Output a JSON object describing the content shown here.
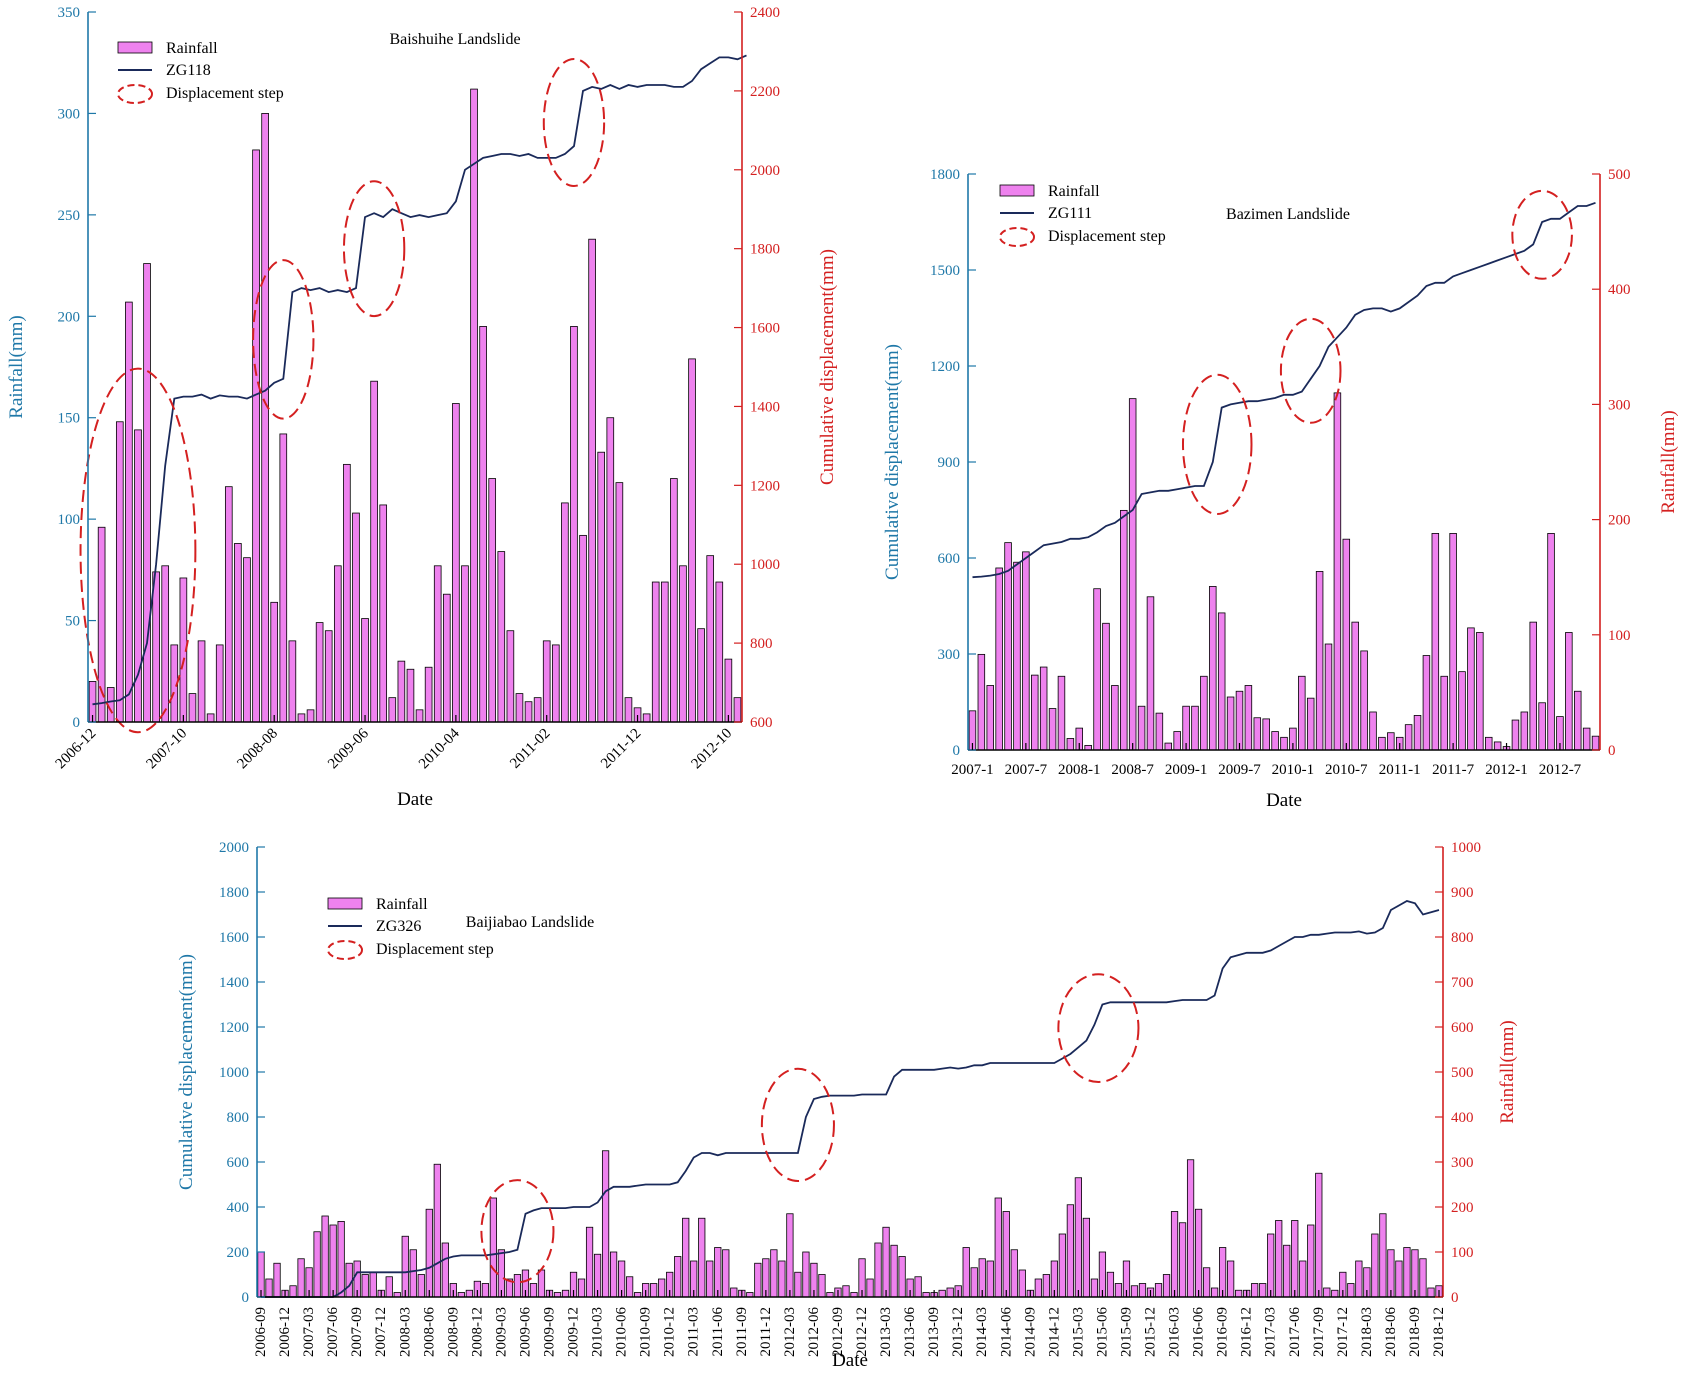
{
  "colors": {
    "bar": "#ee82ee",
    "line": "#1a2a5a",
    "step": "#d42020",
    "blue_axis": "#1f78a8",
    "red_axis": "#d42020"
  },
  "chart_data": [
    {
      "type": "bar+line",
      "title": "Baishuihe Landslide",
      "xlabel": "Date",
      "rain_axis_side": "left",
      "rain_label": "Rainfall(mm)",
      "disp_label": "Cumulative displacement(mm)",
      "rain_lim": [
        0,
        350
      ],
      "rain_ticks": [
        0,
        50,
        100,
        150,
        200,
        250,
        300,
        350
      ],
      "disp_lim": [
        600,
        2400
      ],
      "disp_ticks": [
        600,
        800,
        1000,
        1200,
        1400,
        1600,
        1800,
        2000,
        2200,
        2400
      ],
      "x_tick_labels": [
        "2006-12",
        "2007-10",
        "2008-08",
        "2009-06",
        "2010-04",
        "2011-02",
        "2011-12",
        "2012-10"
      ],
      "x_tick_index": [
        0,
        10,
        20,
        30,
        40,
        50,
        60,
        70
      ],
      "legend": [
        "Rainfall",
        "ZG118",
        "Displacement step"
      ],
      "rainfall": [
        20,
        96,
        17,
        148,
        207,
        144,
        226,
        74,
        77,
        38,
        71,
        14,
        40,
        4,
        38,
        116,
        88,
        81,
        282,
        300,
        59,
        142,
        40,
        4,
        6,
        49,
        45,
        77,
        127,
        103,
        51,
        168,
        107,
        12,
        30,
        26,
        6,
        27,
        77,
        63,
        157,
        77,
        312,
        195,
        120,
        84,
        45,
        14,
        10,
        12,
        40,
        38,
        108,
        195,
        92,
        238,
        133,
        150,
        118,
        12,
        7,
        4,
        69,
        69,
        120,
        77,
        179,
        46,
        82,
        69,
        31,
        12
      ],
      "displacement": [
        645,
        648,
        652,
        655,
        670,
        720,
        800,
        1000,
        1250,
        1420,
        1425,
        1425,
        1430,
        1420,
        1428,
        1425,
        1425,
        1420,
        1430,
        1440,
        1460,
        1470,
        1690,
        1700,
        1695,
        1700,
        1690,
        1695,
        1690,
        1700,
        1880,
        1890,
        1880,
        1900,
        1890,
        1880,
        1885,
        1880,
        1885,
        1890,
        1920,
        2000,
        2015,
        2030,
        2035,
        2040,
        2040,
        2035,
        2040,
        2030,
        2030,
        2030,
        2040,
        2060,
        2200,
        2210,
        2205,
        2215,
        2205,
        2215,
        2210,
        2215,
        2215,
        2215,
        2210,
        2210,
        2225,
        2255,
        2270,
        2285,
        2285,
        2280,
        2290
      ],
      "step_index": [
        [
          0,
          10
        ],
        [
          19,
          23
        ],
        [
          29,
          33
        ],
        [
          51,
          55
        ]
      ]
    },
    {
      "type": "bar+line",
      "title": "Bazimen Landslide",
      "xlabel": "Date",
      "rain_axis_side": "right",
      "rain_label": "Rainfall(mm)",
      "disp_label": "Cumulative displacement(mm)",
      "rain_lim": [
        0,
        500
      ],
      "rain_ticks": [
        0,
        100,
        200,
        300,
        400,
        500
      ],
      "disp_lim": [
        0,
        1800
      ],
      "disp_ticks": [
        0,
        300,
        600,
        900,
        1200,
        1500,
        1800
      ],
      "x_tick_labels": [
        "2007-1",
        "2007-7",
        "2008-1",
        "2008-7",
        "2009-1",
        "2009-7",
        "2010-1",
        "2010-7",
        "2011-1",
        "2011-7",
        "2012-1",
        "2012-7"
      ],
      "x_tick_index": [
        0,
        6,
        12,
        18,
        24,
        30,
        36,
        42,
        48,
        54,
        60,
        66
      ],
      "legend": [
        "Rainfall",
        "ZG111",
        "Displacement step"
      ],
      "rainfall": [
        34,
        83,
        56,
        158,
        180,
        163,
        172,
        65,
        72,
        36,
        64,
        10,
        19,
        4,
        140,
        110,
        56,
        208,
        305,
        38,
        133,
        32,
        6,
        16,
        38,
        38,
        64,
        142,
        119,
        46,
        51,
        56,
        28,
        27,
        16,
        11,
        19,
        64,
        45,
        155,
        92,
        310,
        183,
        111,
        86,
        33,
        11,
        15,
        11,
        22,
        30,
        82,
        188,
        64,
        188,
        68,
        106,
        102,
        11,
        7,
        3,
        26,
        33,
        111,
        41,
        188,
        29,
        102,
        51,
        19,
        12
      ],
      "displacement": [
        540,
        542,
        545,
        550,
        560,
        580,
        600,
        620,
        640,
        645,
        650,
        660,
        660,
        665,
        680,
        700,
        710,
        730,
        750,
        800,
        805,
        810,
        810,
        815,
        820,
        825,
        825,
        900,
        1070,
        1080,
        1085,
        1090,
        1090,
        1095,
        1100,
        1110,
        1110,
        1120,
        1160,
        1200,
        1260,
        1290,
        1320,
        1360,
        1375,
        1380,
        1380,
        1370,
        1380,
        1400,
        1420,
        1450,
        1460,
        1460,
        1480,
        1490,
        1500,
        1510,
        1520,
        1530,
        1540,
        1550,
        1560,
        1580,
        1650,
        1660,
        1660,
        1680,
        1700,
        1700,
        1710
      ],
      "step_index": [
        [
          25,
          30
        ],
        [
          36,
          40
        ],
        [
          62,
          66
        ]
      ]
    },
    {
      "type": "bar+line",
      "title": "Baijiabao Landslide",
      "xlabel": "Date",
      "rain_axis_side": "right",
      "rain_label": "Rainfall(mm)",
      "disp_label": "Cumulative displacement(mm)",
      "rain_lim": [
        0,
        1000
      ],
      "rain_ticks": [
        0,
        100,
        200,
        300,
        400,
        500,
        600,
        700,
        800,
        900,
        1000
      ],
      "disp_lim": [
        0,
        2000
      ],
      "disp_ticks": [
        0,
        200,
        400,
        600,
        800,
        1000,
        1200,
        1400,
        1600,
        1800,
        2000
      ],
      "x_tick_labels": [
        "2006-09",
        "2006-12",
        "2007-03",
        "2007-06",
        "2007-09",
        "2007-12",
        "2008-03",
        "2008-06",
        "2008-09",
        "2008-12",
        "2009-03",
        "2009-06",
        "2009-09",
        "2009-12",
        "2010-03",
        "2010-06",
        "2010-09",
        "2010-12",
        "2011-03",
        "2011-06",
        "2011-09",
        "2011-12",
        "2012-03",
        "2012-06",
        "2012-09",
        "2012-12",
        "2013-03",
        "2013-06",
        "2013-09",
        "2013-12",
        "2014-03",
        "2014-06",
        "2014-09",
        "2014-12",
        "2015-03",
        "2015-06",
        "2015-09",
        "2015-12",
        "2016-03",
        "2016-06",
        "2016-09",
        "2016-12",
        "2017-03",
        "2017-06",
        "2017-09",
        "2017-12",
        "2018-03",
        "2018-06",
        "2018-09",
        "2018-12"
      ],
      "x_tick_index": [
        0,
        3,
        6,
        9,
        12,
        15,
        18,
        21,
        24,
        27,
        30,
        33,
        36,
        39,
        42,
        45,
        48,
        51,
        54,
        57,
        60,
        63,
        66,
        69,
        72,
        75,
        78,
        81,
        84,
        87,
        90,
        93,
        96,
        99,
        102,
        105,
        108,
        111,
        114,
        117,
        120,
        123,
        126,
        129,
        132,
        135,
        138,
        141,
        144,
        147
      ],
      "legend": [
        "Rainfall",
        "ZG326",
        "Displacement step"
      ],
      "rainfall": [
        100,
        40,
        75,
        15,
        25,
        85,
        65,
        145,
        180,
        160,
        168,
        75,
        80,
        50,
        55,
        15,
        45,
        10,
        135,
        105,
        50,
        195,
        295,
        120,
        30,
        10,
        15,
        35,
        30,
        220,
        105,
        40,
        50,
        60,
        30,
        60,
        15,
        10,
        15,
        55,
        40,
        155,
        95,
        325,
        100,
        80,
        45,
        10,
        30,
        30,
        40,
        55,
        90,
        175,
        80,
        175,
        80,
        110,
        105,
        20,
        15,
        10,
        75,
        85,
        105,
        80,
        185,
        55,
        100,
        75,
        50,
        10,
        20,
        25,
        10,
        85,
        40,
        120,
        155,
        115,
        90,
        40,
        45,
        10,
        10,
        15,
        20,
        25,
        110,
        65,
        85,
        80,
        220,
        190,
        105,
        60,
        15,
        40,
        50,
        80,
        140,
        205,
        265,
        175,
        40,
        100,
        55,
        30,
        80,
        25,
        30,
        20,
        30,
        50,
        190,
        165,
        305,
        195,
        65,
        20,
        110,
        80,
        15,
        15,
        30,
        30,
        140,
        170,
        115,
        170,
        80,
        160,
        275,
        20,
        15,
        55,
        30,
        80,
        65,
        140,
        185,
        105,
        80,
        110,
        105,
        85,
        20,
        25
      ],
      "displacement": [
        0,
        0,
        0,
        0,
        0,
        0,
        0,
        0,
        0,
        0,
        20,
        50,
        110,
        110,
        110,
        110,
        110,
        110,
        110,
        115,
        120,
        130,
        150,
        170,
        180,
        185,
        185,
        185,
        185,
        190,
        195,
        200,
        210,
        370,
        385,
        395,
        395,
        395,
        395,
        400,
        400,
        400,
        420,
        470,
        490,
        490,
        490,
        495,
        500,
        500,
        500,
        500,
        510,
        560,
        620,
        640,
        640,
        630,
        640,
        640,
        640,
        640,
        640,
        640,
        640,
        640,
        640,
        640,
        800,
        880,
        890,
        895,
        895,
        895,
        895,
        900,
        900,
        900,
        900,
        980,
        1010,
        1010,
        1010,
        1010,
        1010,
        1015,
        1020,
        1015,
        1020,
        1030,
        1030,
        1040,
        1040,
        1040,
        1040,
        1040,
        1040,
        1040,
        1040,
        1040,
        1060,
        1080,
        1110,
        1140,
        1210,
        1300,
        1310,
        1310,
        1310,
        1310,
        1310,
        1310,
        1310,
        1310,
        1315,
        1320,
        1320,
        1320,
        1320,
        1340,
        1460,
        1510,
        1520,
        1530,
        1530,
        1530,
        1540,
        1560,
        1580,
        1600,
        1600,
        1610,
        1610,
        1615,
        1620,
        1620,
        1620,
        1625,
        1615,
        1620,
        1640,
        1720,
        1740,
        1760,
        1750,
        1700,
        1710,
        1720
      ],
      "step_index": [
        [
          29,
          35
        ],
        [
          64,
          70
        ],
        [
          101,
          108
        ]
      ]
    }
  ]
}
